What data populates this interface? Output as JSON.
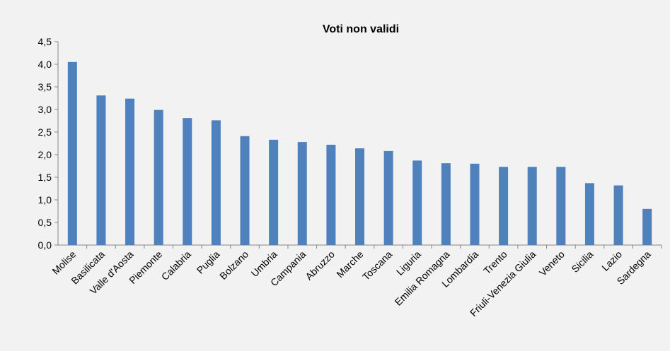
{
  "chart_data": {
    "type": "bar",
    "title": "Voti non validi",
    "categories": [
      "Molise",
      "Basilicata",
      "Valle d'Aosta",
      "Piemonte",
      "Calabria",
      "Puglia",
      "Bolzano",
      "Umbria",
      "Campania",
      "Abruzzo",
      "Marche",
      "Toscana",
      "Liguria",
      "Emilia Romagna",
      "Lombardia",
      "Trento",
      "Friuli-Venezia Giulia",
      "Veneto",
      "Sicilia",
      "Lazio",
      "Sardegna"
    ],
    "values": [
      4.05,
      3.31,
      3.24,
      2.99,
      2.81,
      2.76,
      2.41,
      2.33,
      2.28,
      2.22,
      2.14,
      2.08,
      1.87,
      1.81,
      1.8,
      1.73,
      1.73,
      1.73,
      1.37,
      1.32,
      0.8
    ],
    "color": "#4f81bd",
    "ylim": [
      0,
      4.5
    ],
    "yticks": [
      {
        "value": 0,
        "label": "0,0"
      },
      {
        "value": 0.5,
        "label": "0,5"
      },
      {
        "value": 1,
        "label": "1,0"
      },
      {
        "value": 1.5,
        "label": "1,5"
      },
      {
        "value": 2,
        "label": "2,0"
      },
      {
        "value": 2.5,
        "label": "2,5"
      },
      {
        "value": 3,
        "label": "3,0"
      },
      {
        "value": 3.5,
        "label": "3,5"
      },
      {
        "value": 4,
        "label": "4,0"
      },
      {
        "value": 4.5,
        "label": "4,5"
      }
    ],
    "grid": false
  }
}
